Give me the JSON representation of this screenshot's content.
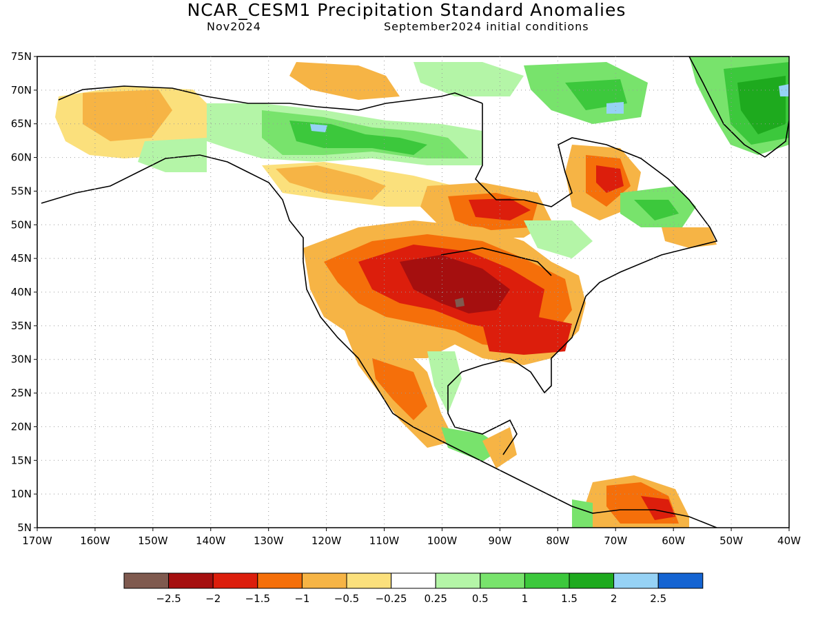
{
  "title": "NCAR_CESM1 Precipitation Standard Anomalies",
  "subtitle_left": "Nov2024",
  "subtitle_right": "September2024 initial conditions",
  "lat_labels": [
    "75N",
    "70N",
    "65N",
    "60N",
    "55N",
    "50N",
    "45N",
    "40N",
    "35N",
    "30N",
    "25N",
    "20N",
    "15N",
    "10N",
    "5N"
  ],
  "lon_labels": [
    "170W",
    "160W",
    "150W",
    "140W",
    "130W",
    "120W",
    "110W",
    "100W",
    "90W",
    "80W",
    "70W",
    "60W",
    "50W",
    "40W"
  ],
  "map_extent": {
    "lon_min": -170,
    "lon_max": -40,
    "lat_min": 5,
    "lat_max": 75
  },
  "colorbar": {
    "colors": [
      "#7f5a4f",
      "#a50f0f",
      "#dc1e0c",
      "#f56f0a",
      "#f6b445",
      "#fbe07c",
      "#ffffff",
      "#b4f5a7",
      "#78e36c",
      "#3cc83c",
      "#1eaa1e",
      "#96d2f5",
      "#1464d2"
    ],
    "labels": [
      "-2.5",
      "-2",
      "-1.5",
      "-1",
      "-0.5",
      "-0.25",
      "0.25",
      "0.5",
      "1",
      "1.5",
      "2",
      "2.5"
    ]
  }
}
